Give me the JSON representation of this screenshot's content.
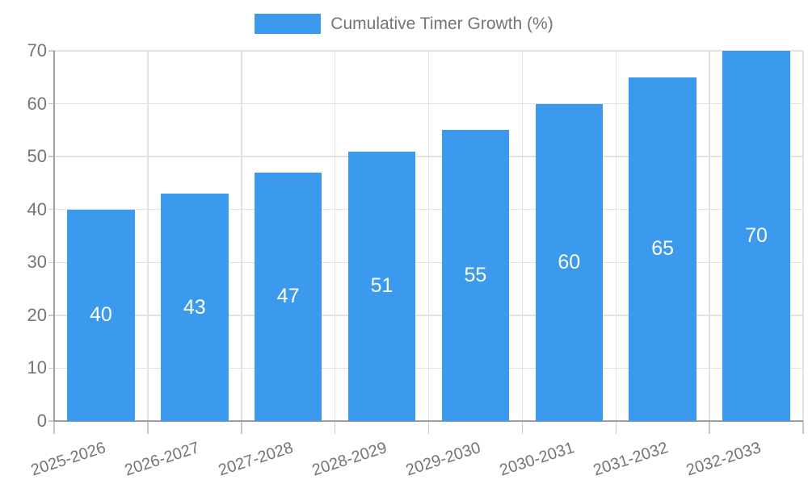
{
  "chart_data": {
    "type": "bar",
    "categories": [
      "2025-2026",
      "2026-2027",
      "2027-2028",
      "2028-2029",
      "2029-2030",
      "2030-2031",
      "2031-2032",
      "2032-2033"
    ],
    "series": [
      {
        "name": "Cumulative Timer Growth (%)",
        "values": [
          40,
          43,
          47,
          51,
          55,
          60,
          65,
          70
        ]
      }
    ],
    "value_labels_shown_inside_bars": [
      40,
      43,
      47,
      51,
      55,
      60,
      65,
      70
    ],
    "yticks": [
      0,
      10,
      20,
      30,
      40,
      50,
      60,
      70
    ],
    "ylim": [
      0,
      70
    ],
    "grid": true,
    "legend_position": "top-center",
    "x_tick_label_rotation_deg": -18,
    "colors": {
      "bar": "#3B99EE",
      "grid": "#E2E2E2",
      "axis": "#9D9D9D",
      "tick_mark": "#C8C8C8",
      "text": "#757575",
      "value_label": "#FFFFFF",
      "background": "#FFFFFF"
    }
  }
}
